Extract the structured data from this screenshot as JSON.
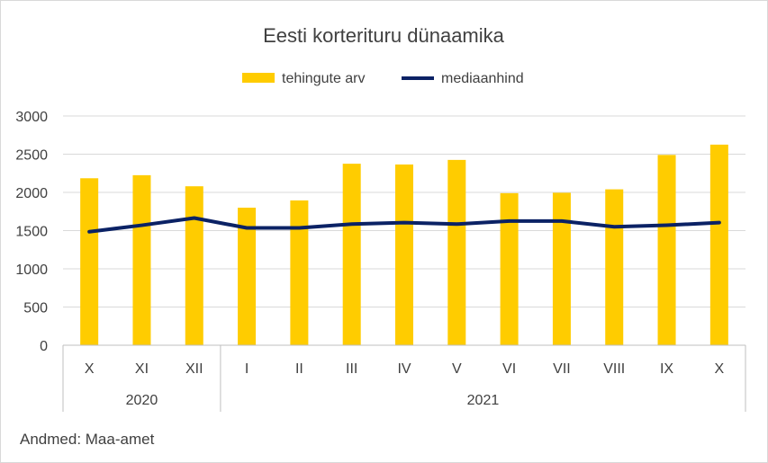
{
  "chart_data": {
    "type": "bar",
    "title": "Eesti korterituru dünaamika",
    "categories": [
      "X",
      "XI",
      "XII",
      "I",
      "II",
      "III",
      "IV",
      "V",
      "VI",
      "VII",
      "VIII",
      "IX",
      "X"
    ],
    "groups": [
      {
        "label": "2020",
        "span": 3
      },
      {
        "label": "2021",
        "span": 10
      }
    ],
    "series": [
      {
        "name": "tehingute arv",
        "kind": "bar",
        "color": "#FFCC00",
        "values": [
          2185,
          2225,
          2080,
          1800,
          1895,
          2375,
          2365,
          2425,
          1990,
          1995,
          2040,
          2490,
          2625
        ]
      },
      {
        "name": "mediaanhind",
        "kind": "line",
        "color": "#0B2265",
        "values": [
          1485,
          1570,
          1665,
          1535,
          1535,
          1585,
          1605,
          1585,
          1625,
          1625,
          1550,
          1570,
          1605
        ]
      }
    ],
    "ylim": [
      0,
      3000
    ],
    "yticks": [
      "0",
      "500",
      "1000",
      "1500",
      "2000",
      "2500",
      "3000"
    ],
    "grid": true,
    "legend_position": "top"
  },
  "source": "Andmed: Maa-amet"
}
